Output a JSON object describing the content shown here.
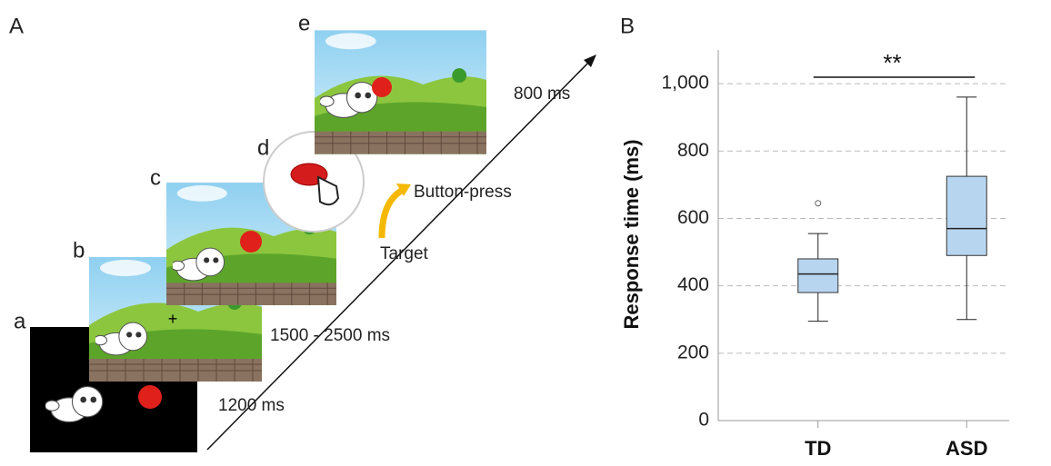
{
  "panel_a": {
    "label": "A",
    "frames": [
      "a",
      "b",
      "c",
      "d",
      "e"
    ],
    "timings": [
      "1200 ms",
      "1500 - 2500 ms",
      "800 ms"
    ],
    "events": [
      "Target",
      "Button-press"
    ]
  },
  "chart_data": {
    "type": "box",
    "panel_label": "B",
    "ylabel": "Response time (ms)",
    "annotation": "**",
    "categories": [
      "TD",
      "ASD"
    ],
    "boxes": [
      {
        "min": 295,
        "q1": 380,
        "median": 435,
        "q3": 480,
        "max": 555,
        "outliers": [
          645
        ]
      },
      {
        "min": 300,
        "q1": 490,
        "median": 570,
        "q3": 725,
        "max": 960,
        "outliers": []
      }
    ],
    "ylim": [
      0,
      1100
    ],
    "yticks": [
      0,
      200,
      400,
      600,
      800,
      {
        "value": 1000,
        "label": "1,000"
      }
    ],
    "grid": true,
    "color": "#b8d5f0"
  }
}
